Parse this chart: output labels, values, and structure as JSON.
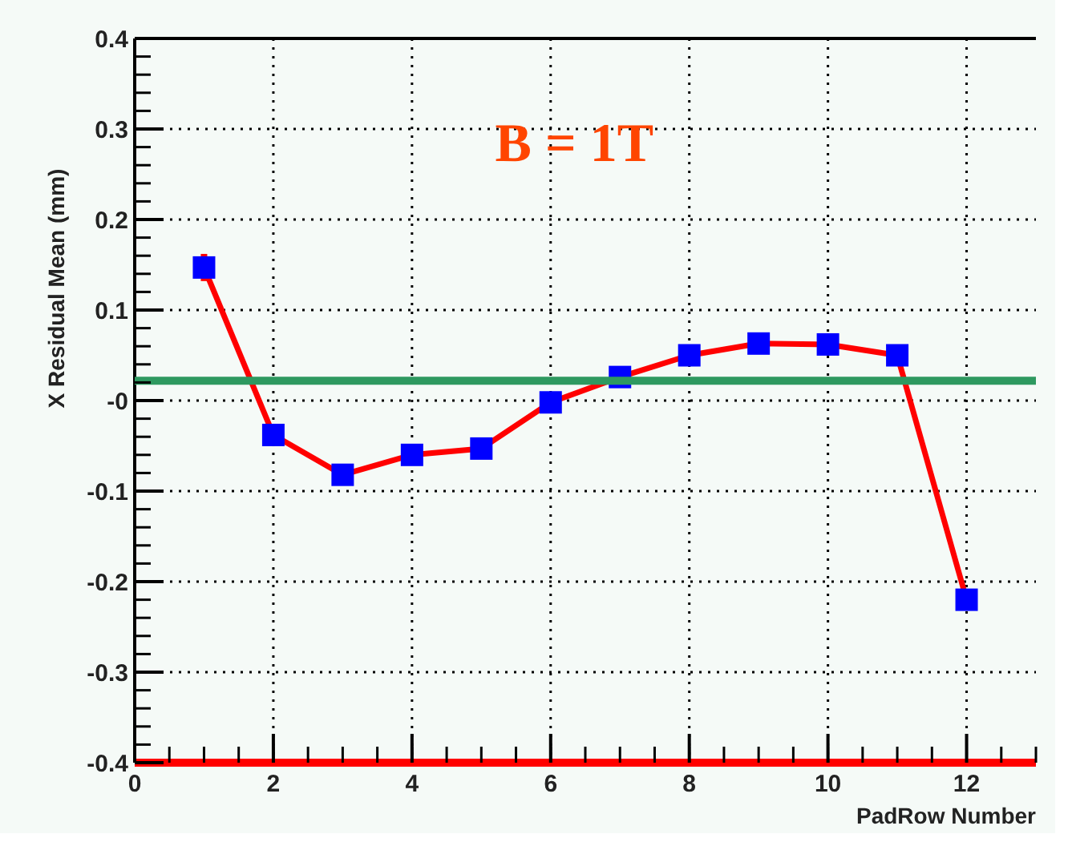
{
  "chart_data": {
    "type": "line",
    "ylabel": "X Residual Mean (mm)",
    "xlabel": "PadRow Number",
    "annotations": [
      "B = 1T"
    ],
    "x": [
      1,
      2,
      3,
      4,
      5,
      6,
      7,
      8,
      9,
      10,
      11,
      12
    ],
    "series": [
      {
        "color": "#ff0000",
        "colors": [
          "#0000ff",
          "#0000ff",
          "#0000ff",
          "#0000ff",
          "#0000ff",
          "#0000ff",
          "#0000ff",
          "#0000ff",
          "#0000ff",
          "#0000ff",
          "#0000ff",
          "#0000ff"
        ],
        "values": [
          0.147,
          -0.038,
          -0.082,
          -0.06,
          -0.053,
          -0.002,
          0.026,
          0.05,
          0.063,
          0.062,
          0.05,
          -0.22
        ],
        "errors": [
          0.015,
          0.01,
          null,
          null,
          null,
          null,
          null,
          null,
          null,
          null,
          0.01,
          0.01
        ]
      }
    ],
    "xlim": [
      0,
      13
    ],
    "xticks": [
      0,
      2,
      4,
      6,
      8,
      10,
      12
    ],
    "ylim": [
      -0.4,
      0.4
    ],
    "yticks": [
      {
        "value": -0.4,
        "label": "-0.4"
      },
      {
        "value": -0.3,
        "label": "-0.3"
      },
      {
        "value": -0.2,
        "label": "-0.2"
      },
      {
        "value": -0.1,
        "label": "-0.1"
      },
      {
        "value": 0,
        "label": "-0"
      },
      {
        "value": 0.1,
        "label": "0.1"
      },
      {
        "value": 0.2,
        "label": "0.2"
      },
      {
        "value": 0.3,
        "label": "0.3"
      },
      {
        "value": 0.4,
        "label": "0.4"
      }
    ],
    "ref_lines": [
      {
        "axis": "y",
        "value": 0.022,
        "color": "#2e9960"
      },
      {
        "axis": "y",
        "value": -0.4,
        "color": "#ff0000"
      }
    ],
    "grid": true,
    "marker": "square",
    "line_style": "solid"
  }
}
